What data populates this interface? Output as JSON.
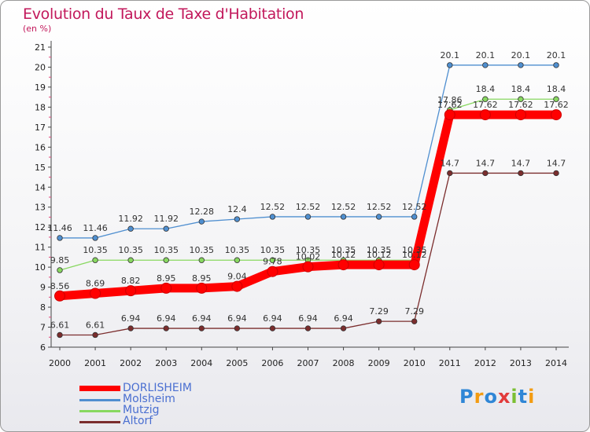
{
  "header": {
    "title": "Evolution du Taux de Taxe d'Habitation",
    "subtitle": "(en %)"
  },
  "brand": {
    "letters": [
      "P",
      "r",
      "o",
      "x",
      "i",
      "t",
      "i"
    ],
    "colors": [
      "#2f86d6",
      "#f39c12",
      "#2f86d6",
      "#e23b3b",
      "#7bbf33",
      "#2f86d6",
      "#f39c12"
    ]
  },
  "chart_data": {
    "type": "line",
    "title": "Evolution du Taux de Taxe d'Habitation",
    "subtitle": "(en %)",
    "x": [
      "2000",
      "2001",
      "2002",
      "2003",
      "2004",
      "2005",
      "2006",
      "2007",
      "2008",
      "2009",
      "2010",
      "2011",
      "2012",
      "2013",
      "2014"
    ],
    "ylim": [
      6,
      21
    ],
    "yticks": [
      6,
      7,
      8,
      9,
      10,
      11,
      12,
      13,
      14,
      15,
      16,
      17,
      18,
      19,
      20,
      21
    ],
    "grid": false,
    "legend_position": "bottom-left",
    "series": [
      {
        "name": "DORLISHEIM",
        "color": "#ff0000",
        "values": [
          8.56,
          8.69,
          8.82,
          8.95,
          8.95,
          9.04,
          9.78,
          10.02,
          10.12,
          10.12,
          10.12,
          17.62,
          17.62,
          17.62,
          17.62
        ],
        "labels": [
          "8.56",
          "8.69",
          "8.82",
          "8.95",
          "8.95",
          "9.04",
          "9.78",
          "10.02",
          "10.12",
          "10.12",
          "10.12",
          "17.62",
          "17.62",
          "17.62",
          "17.62"
        ]
      },
      {
        "name": "Molsheim",
        "color": "#4f8fd0",
        "values": [
          11.46,
          11.46,
          11.92,
          11.92,
          12.28,
          12.4,
          12.52,
          12.52,
          12.52,
          12.52,
          12.52,
          20.1,
          20.1,
          20.1,
          20.1
        ],
        "labels": [
          "11.46",
          "11.46",
          "11.92",
          "11.92",
          "12.28",
          "12.4",
          "12.52",
          "12.52",
          "12.52",
          "12.52",
          "12.52",
          "20.1",
          "20.1",
          "20.1",
          "20.1"
        ]
      },
      {
        "name": "Mutzig",
        "color": "#88d860",
        "values": [
          9.85,
          10.35,
          10.35,
          10.35,
          10.35,
          10.35,
          10.35,
          10.35,
          10.35,
          10.35,
          10.35,
          17.86,
          18.4,
          18.4,
          18.4
        ],
        "labels": [
          "9.85",
          "10.35",
          "10.35",
          "10.35",
          "10.35",
          "10.35",
          "10.35",
          "10.35",
          "10.35",
          "10.35",
          "10.35",
          "17.86",
          "18.4",
          "18.4",
          "18.4"
        ]
      },
      {
        "name": "Altorf",
        "color": "#7b2d2d",
        "values": [
          6.61,
          6.61,
          6.94,
          6.94,
          6.94,
          6.94,
          6.94,
          6.94,
          6.94,
          7.29,
          7.29,
          14.7,
          14.7,
          14.7,
          14.7
        ],
        "labels": [
          "6.61",
          "6.61",
          "6.94",
          "6.94",
          "6.94",
          "6.94",
          "6.94",
          "6.94",
          "6.94",
          "7.29",
          "7.29",
          "14.7",
          "14.7",
          "14.7",
          "14.7"
        ]
      }
    ]
  }
}
